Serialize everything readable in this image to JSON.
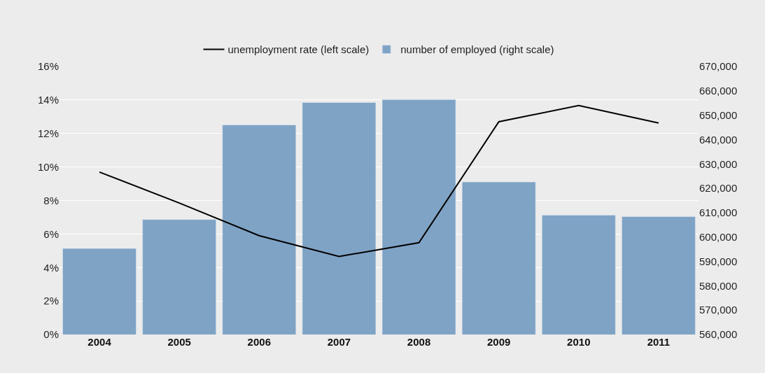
{
  "chart_data": {
    "type": "bar",
    "categories": [
      "2004",
      "2005",
      "2006",
      "2007",
      "2008",
      "2009",
      "2010",
      "2011"
    ],
    "series": [
      {
        "name": "unemployment rate (left scale)",
        "type": "line",
        "color": "#000000",
        "values": [
          9.7,
          7.85,
          5.9,
          4.66,
          5.48,
          12.7,
          13.67,
          12.63
        ]
      },
      {
        "name": "number of employed (right scale)",
        "axis": "y2",
        "color": "#7fa3c5",
        "values": [
          595300,
          607200,
          646000,
          655200,
          656400,
          622600,
          609000,
          608400
        ]
      }
    ],
    "ylim": [
      0,
      16
    ],
    "yticks": [
      {
        "value": 0,
        "label": "0%"
      },
      {
        "value": 2,
        "label": "2%"
      },
      {
        "value": 4,
        "label": "4%"
      },
      {
        "value": 6,
        "label": "6%"
      },
      {
        "value": 8,
        "label": "8%"
      },
      {
        "value": 10,
        "label": "10%"
      },
      {
        "value": 12,
        "label": "12%"
      },
      {
        "value": 14,
        "label": "14%"
      },
      {
        "value": 16,
        "label": "16%"
      }
    ],
    "y2lim": [
      560000,
      670000
    ],
    "y2ticks": [
      {
        "value": 560000,
        "label": "560,000"
      },
      {
        "value": 570000,
        "label": "570,000"
      },
      {
        "value": 580000,
        "label": "580,000"
      },
      {
        "value": 590000,
        "label": "590,000"
      },
      {
        "value": 600000,
        "label": "600,000"
      },
      {
        "value": 610000,
        "label": "610,000"
      },
      {
        "value": 620000,
        "label": "620,000"
      },
      {
        "value": 630000,
        "label": "630,000"
      },
      {
        "value": 640000,
        "label": "640,000"
      },
      {
        "value": 650000,
        "label": "650,000"
      },
      {
        "value": 660000,
        "label": "660,000"
      },
      {
        "value": 670000,
        "label": "670,000"
      }
    ],
    "grid": "y",
    "legend": "top",
    "marker": "none",
    "line_style": "solid"
  }
}
